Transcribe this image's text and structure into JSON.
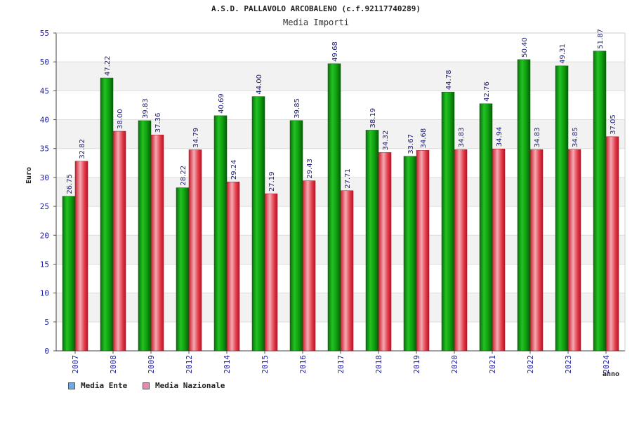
{
  "chart_data": {
    "type": "bar",
    "title": "A.S.D. PALLAVOLO ARCOBALENO (c.f.92117740289)",
    "subtitle": "Media Importi",
    "xlabel": "anno",
    "ylabel": "Euro",
    "ylim": [
      0,
      55
    ],
    "yticks": [
      0,
      5,
      10,
      15,
      20,
      25,
      30,
      35,
      40,
      45,
      50,
      55
    ],
    "grid": true,
    "categories": [
      "2007",
      "2008",
      "2009",
      "2012",
      "2014",
      "2015",
      "2016",
      "2017",
      "2018",
      "2019",
      "2020",
      "2021",
      "2022",
      "2023",
      "2024"
    ],
    "series": [
      {
        "name": "Media Ente",
        "color": "#22aa22",
        "labels": [
          "26.75",
          "47.22",
          "39.83",
          "28.22",
          "40.69",
          "44.00",
          "39.85",
          "49.68",
          "38.19",
          "33.67",
          "44.78",
          "42.76",
          "50.40",
          "49.31",
          "51.87"
        ],
        "values": [
          26.75,
          47.22,
          39.83,
          28.22,
          40.69,
          44.0,
          39.85,
          49.68,
          38.19,
          33.67,
          44.78,
          42.76,
          50.4,
          49.31,
          51.87
        ]
      },
      {
        "name": "Media Nazionale",
        "color": "#e04050",
        "labels": [
          "32.82",
          "38.00",
          "37.36",
          "34.79",
          "29.24",
          "27.19",
          "29.43",
          "27.71",
          "34.32",
          "34.68",
          "34.83",
          "34.94",
          "34.83",
          "34.85",
          "37.05"
        ],
        "values": [
          32.82,
          38.0,
          37.36,
          34.79,
          29.24,
          27.19,
          29.43,
          27.71,
          34.32,
          34.68,
          34.83,
          34.94,
          34.83,
          34.85,
          37.05
        ]
      }
    ],
    "legend": [
      {
        "label": "Media Ente",
        "swatch": "#6fa8e8"
      },
      {
        "label": "Media Nazionale",
        "swatch": "#e888b0"
      }
    ],
    "legend_position": "bottom-left",
    "tick_label_color": "#1a1aa0",
    "data_label_color": "#1a1a80"
  }
}
